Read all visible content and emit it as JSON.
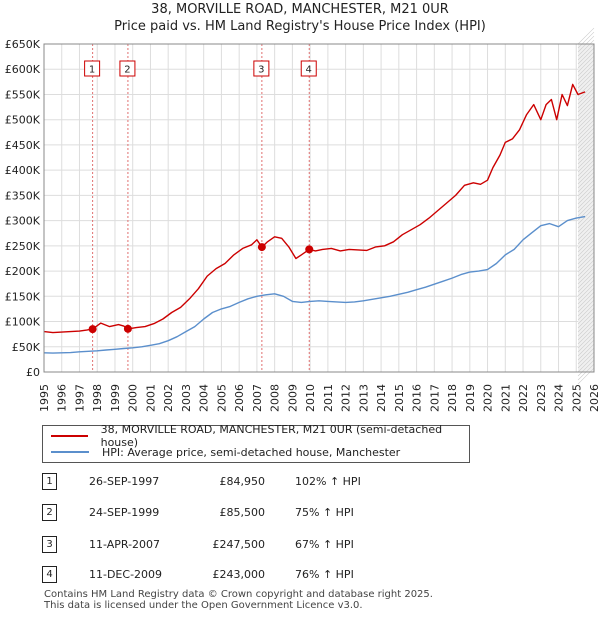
{
  "title": {
    "line1": "38, MORVILLE ROAD, MANCHESTER, M21 0UR",
    "line2": "Price paid vs. HM Land Registry's House Price Index (HPI)"
  },
  "legend": {
    "property_label": "38, MORVILLE ROAD, MANCHESTER, M21 0UR (semi-detached house)",
    "hpi_label": "HPI: Average price, semi-detached house, Manchester"
  },
  "colors": {
    "property": "#cc0000",
    "hpi": "#5b8fcc",
    "marker_line": "#e07070",
    "future_band": "#cccccc"
  },
  "transactions": [
    {
      "id": "1",
      "date": "26-SEP-1997",
      "price": "£84,950",
      "hpi_change": "102% ↑ HPI"
    },
    {
      "id": "2",
      "date": "24-SEP-1999",
      "price": "£85,500",
      "hpi_change": "75% ↑ HPI"
    },
    {
      "id": "3",
      "date": "11-APR-2007",
      "price": "£247,500",
      "hpi_change": "67% ↑ HPI"
    },
    {
      "id": "4",
      "date": "11-DEC-2009",
      "price": "£243,000",
      "hpi_change": "76% ↑ HPI"
    }
  ],
  "footer": {
    "line1": "Contains HM Land Registry data © Crown copyright and database right 2025.",
    "line2": "This data is licensed under the Open Government Licence v3.0."
  },
  "chart_data": {
    "type": "line",
    "title": "Price paid vs. HM Land Registry's House Price Index (HPI)",
    "xlabel": "",
    "ylabel": "",
    "xlim": [
      1995,
      2026
    ],
    "ylim": [
      0,
      650000
    ],
    "x_ticks": [
      1995,
      1996,
      1997,
      1998,
      1999,
      2000,
      2001,
      2002,
      2003,
      2004,
      2005,
      2006,
      2007,
      2008,
      2009,
      2010,
      2011,
      2012,
      2013,
      2014,
      2015,
      2016,
      2017,
      2018,
      2019,
      2020,
      2021,
      2022,
      2023,
      2024,
      2025,
      2026
    ],
    "y_ticks": [
      0,
      50000,
      100000,
      150000,
      200000,
      250000,
      300000,
      350000,
      400000,
      450000,
      500000,
      550000,
      600000,
      650000
    ],
    "y_tick_labels": [
      "£0",
      "£50K",
      "£100K",
      "£150K",
      "£200K",
      "£250K",
      "£300K",
      "£350K",
      "£400K",
      "£450K",
      "£500K",
      "£550K",
      "£600K",
      "£650K"
    ],
    "grid": true,
    "forecast_after": 2025.1,
    "sale_markers": [
      {
        "label": "1",
        "x": 1997.74,
        "y": 84950
      },
      {
        "label": "2",
        "x": 1999.73,
        "y": 85500
      },
      {
        "label": "3",
        "x": 2007.28,
        "y": 247500
      },
      {
        "label": "4",
        "x": 2009.95,
        "y": 243000
      }
    ],
    "series": [
      {
        "name": "38, MORVILLE ROAD, MANCHESTER, M21 0UR (semi-detached house)",
        "color": "#cc0000",
        "x": [
          1995.0,
          1995.5,
          1996.0,
          1996.5,
          1997.0,
          1997.4,
          1997.74,
          1998.2,
          1998.7,
          1999.2,
          1999.5,
          1999.73,
          2000.2,
          2000.7,
          2001.2,
          2001.7,
          2002.2,
          2002.7,
          2003.2,
          2003.7,
          2004.2,
          2004.7,
          2005.2,
          2005.7,
          2006.2,
          2006.7,
          2007.0,
          2007.28,
          2007.6,
          2008.0,
          2008.4,
          2008.8,
          2009.2,
          2009.5,
          2009.95,
          2010.3,
          2010.7,
          2011.2,
          2011.7,
          2012.2,
          2012.7,
          2013.2,
          2013.7,
          2014.2,
          2014.7,
          2015.2,
          2015.7,
          2016.2,
          2016.7,
          2017.2,
          2017.7,
          2018.2,
          2018.7,
          2019.2,
          2019.6,
          2020.0,
          2020.3,
          2020.7,
          2021.0,
          2021.4,
          2021.8,
          2022.2,
          2022.6,
          2023.0,
          2023.3,
          2023.6,
          2023.9,
          2024.2,
          2024.5,
          2024.8,
          2025.1,
          2025.5
        ],
        "y": [
          80000,
          78000,
          79000,
          80000,
          81000,
          83000,
          84950,
          97000,
          90000,
          94000,
          91000,
          85500,
          88000,
          90000,
          96000,
          105000,
          118000,
          128000,
          145000,
          165000,
          190000,
          205000,
          215000,
          232000,
          245000,
          252000,
          262000,
          247500,
          258000,
          268000,
          265000,
          248000,
          225000,
          232000,
          243000,
          240000,
          243000,
          245000,
          240000,
          243000,
          242000,
          241000,
          248000,
          250000,
          258000,
          272000,
          282000,
          292000,
          305000,
          320000,
          335000,
          350000,
          370000,
          375000,
          372000,
          380000,
          405000,
          430000,
          455000,
          462000,
          480000,
          510000,
          530000,
          500000,
          530000,
          540000,
          500000,
          550000,
          528000,
          570000,
          550000,
          555000
        ]
      },
      {
        "name": "HPI: Average price, semi-detached house, Manchester",
        "color": "#5b8fcc",
        "x": [
          1995.0,
          1995.5,
          1996.0,
          1996.5,
          1997.0,
          1997.5,
          1998.0,
          1998.5,
          1999.0,
          1999.5,
          2000.0,
          2000.5,
          2001.0,
          2001.5,
          2002.0,
          2002.5,
          2003.0,
          2003.5,
          2004.0,
          2004.5,
          2005.0,
          2005.5,
          2006.0,
          2006.5,
          2007.0,
          2007.5,
          2008.0,
          2008.5,
          2009.0,
          2009.5,
          2010.0,
          2010.5,
          2011.0,
          2011.5,
          2012.0,
          2012.5,
          2013.0,
          2013.5,
          2014.0,
          2014.5,
          2015.0,
          2015.5,
          2016.0,
          2016.5,
          2017.0,
          2017.5,
          2018.0,
          2018.5,
          2019.0,
          2019.5,
          2020.0,
          2020.5,
          2021.0,
          2021.5,
          2022.0,
          2022.5,
          2023.0,
          2023.5,
          2024.0,
          2024.5,
          2025.0,
          2025.5
        ],
        "y": [
          38000,
          37500,
          38000,
          38500,
          40000,
          41000,
          42000,
          43500,
          45000,
          46500,
          48000,
          50000,
          53000,
          56000,
          62000,
          70000,
          80000,
          90000,
          105000,
          118000,
          125000,
          130000,
          138000,
          145000,
          150000,
          153000,
          155000,
          150000,
          140000,
          138000,
          140000,
          141000,
          140000,
          139000,
          138000,
          139000,
          141000,
          144000,
          147000,
          150000,
          154000,
          158000,
          163000,
          168000,
          174000,
          180000,
          186000,
          193000,
          198000,
          200000,
          203000,
          215000,
          232000,
          243000,
          262000,
          276000,
          290000,
          294000,
          288000,
          300000,
          305000,
          308000
        ]
      }
    ]
  }
}
